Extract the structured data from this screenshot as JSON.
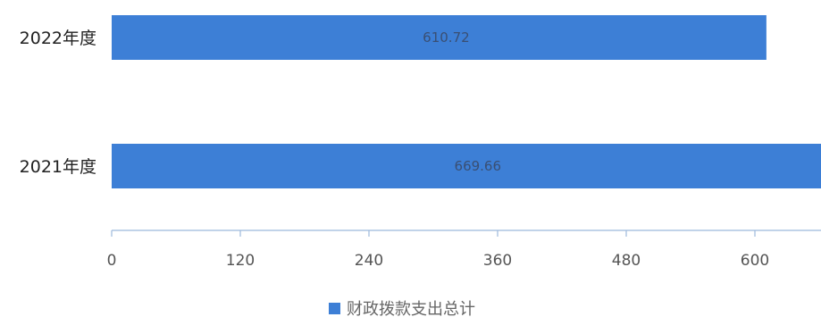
{
  "chart_data": {
    "type": "bar",
    "orientation": "horizontal",
    "categories": [
      "2022年度",
      "2021年度"
    ],
    "series": [
      {
        "name": "财政拨款支出总计",
        "values": [
          610.72,
          669.66
        ],
        "color": "#3d7fd6"
      }
    ],
    "data_labels": [
      "610.72",
      "669.66"
    ],
    "x_ticks": [
      "0",
      "120",
      "240",
      "360",
      "480",
      "600"
    ],
    "xlim": [
      0,
      660
    ],
    "grid": false,
    "legend_position": "bottom"
  }
}
